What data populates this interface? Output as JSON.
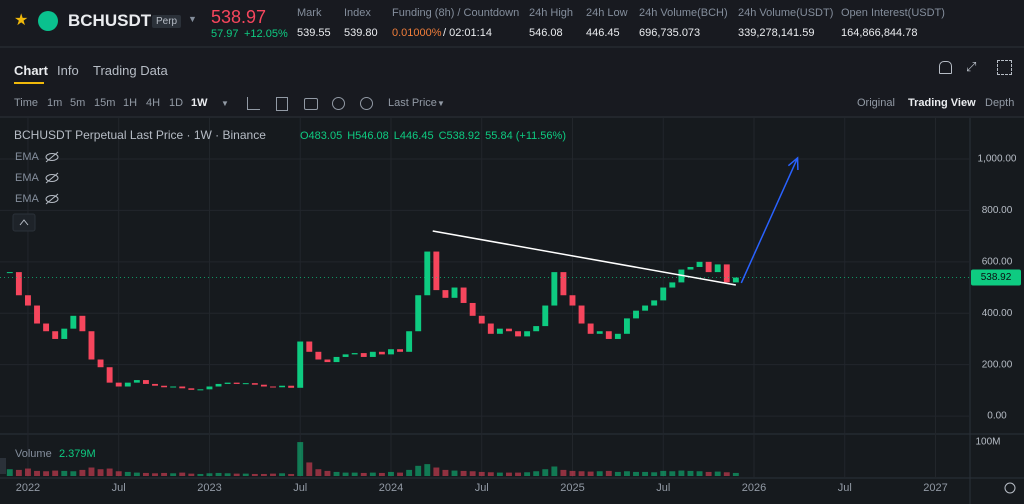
{
  "header": {
    "symbol": "BCHUSDT",
    "badge": "Perp",
    "last_price": "538.97",
    "change": "57.97",
    "change_pct": "+12.05%",
    "stats": [
      {
        "label": "Mark",
        "value": "539.55"
      },
      {
        "label": "Index",
        "value": "539.80"
      },
      {
        "label": "Funding (8h) / Countdown",
        "value": "0.01000%",
        "extra": "/ 02:01:14"
      },
      {
        "label": "24h High",
        "value": "546.08"
      },
      {
        "label": "24h Low",
        "value": "446.45"
      },
      {
        "label": "24h Volume(BCH)",
        "value": "696,735.073"
      },
      {
        "label": "24h Volume(USDT)",
        "value": "339,278,141.59"
      },
      {
        "label": "Open Interest(USDT)",
        "value": "164,866,844.78"
      }
    ]
  },
  "tabs": [
    "Chart",
    "Info",
    "Trading Data"
  ],
  "toolbar": {
    "intervals": [
      "Time",
      "1m",
      "5m",
      "15m",
      "1H",
      "4H",
      "1D",
      "1W"
    ],
    "price_type": "Last Price",
    "views": [
      "Original",
      "Trading View",
      "Depth"
    ]
  },
  "chart_data": {
    "type": "candlestick",
    "title": "BCHUSDT Perpetual Last Price · 1W · Binance",
    "ohlc_labels": [
      "O483.05",
      "H546.08",
      "L446.45",
      "C538.92",
      "55.84 (+11.56%)"
    ],
    "indicators": [
      "EMA",
      "EMA",
      "EMA"
    ],
    "up_color": "#0ecb81",
    "down_color": "#f6465d",
    "grid": true,
    "xlim": [
      2021.846,
      2027.19
    ],
    "xticks": [
      {
        "value": 2022,
        "label": "2022"
      },
      {
        "value": 2022.5,
        "label": "Jul"
      },
      {
        "value": 2023,
        "label": "2023"
      },
      {
        "value": 2023.5,
        "label": "Jul"
      },
      {
        "value": 2024,
        "label": "2024"
      },
      {
        "value": 2024.5,
        "label": "Jul"
      },
      {
        "value": 2025,
        "label": "2025"
      },
      {
        "value": 2025.5,
        "label": "Jul"
      },
      {
        "value": 2026,
        "label": "2026"
      },
      {
        "value": 2026.5,
        "label": "Jul"
      },
      {
        "value": 2027,
        "label": "2027"
      }
    ],
    "ylim": [
      -62,
      1144
    ],
    "yticks": [
      {
        "value": 0,
        "label": "0.00"
      },
      {
        "value": 200,
        "label": "200.00"
      },
      {
        "value": 400,
        "label": "400.00"
      },
      {
        "value": 600,
        "label": "600.00"
      },
      {
        "value": 800,
        "label": "800.00"
      },
      {
        "value": 1000,
        "label": "1,000.00"
      }
    ],
    "x": [
      2021.9,
      2021.95,
      2022,
      2022.05,
      2022.1,
      2022.15,
      2022.2,
      2022.25,
      2022.3,
      2022.35,
      2022.4,
      2022.45,
      2022.5,
      2022.55,
      2022.6,
      2022.65,
      2022.7,
      2022.75,
      2022.8,
      2022.85,
      2022.9,
      2022.95,
      2023,
      2023.05,
      2023.1,
      2023.15,
      2023.2,
      2023.25,
      2023.3,
      2023.35,
      2023.4,
      2023.45,
      2023.5,
      2023.55,
      2023.6,
      2023.65,
      2023.7,
      2023.75,
      2023.8,
      2023.85,
      2023.9,
      2023.95,
      2024,
      2024.05,
      2024.1,
      2024.15,
      2024.2,
      2024.25,
      2024.3,
      2024.35,
      2024.4,
      2024.45,
      2024.5,
      2024.55,
      2024.6,
      2024.65,
      2024.7,
      2024.75,
      2024.8,
      2024.85,
      2024.9,
      2024.95,
      2025,
      2025.05,
      2025.1,
      2025.15,
      2025.2,
      2025.25,
      2025.3,
      2025.35,
      2025.4,
      2025.45,
      2025.5,
      2025.55,
      2025.6,
      2025.65,
      2025.7,
      2025.75,
      2025.8,
      2025.85,
      2025.9
    ],
    "close": [
      560,
      470,
      430,
      360,
      330,
      300,
      340,
      390,
      330,
      220,
      190,
      130,
      115,
      130,
      140,
      125,
      118,
      112,
      115,
      108,
      102,
      104,
      115,
      125,
      130,
      125,
      128,
      122,
      115,
      112,
      118,
      110,
      290,
      250,
      220,
      210,
      230,
      240,
      245,
      230,
      250,
      240,
      260,
      250,
      330,
      470,
      640,
      490,
      460,
      500,
      440,
      390,
      360,
      320,
      340,
      330,
      310,
      330,
      350,
      430,
      560,
      470,
      430,
      360,
      320,
      330,
      300,
      320,
      380,
      410,
      430,
      450,
      500,
      520,
      570,
      580,
      600,
      560,
      590,
      520,
      538.92
    ],
    "volume": {
      "name": "Volume",
      "current": "2.379M",
      "ylim": [
        0,
        115
      ],
      "yticks": [
        {
          "value": 100,
          "label": "100M"
        }
      ],
      "values": [
        20,
        18,
        22,
        15,
        14,
        16,
        15,
        14,
        18,
        25,
        20,
        22,
        14,
        12,
        10,
        9,
        8,
        9,
        8,
        10,
        7,
        6,
        8,
        9,
        8,
        7,
        7,
        6,
        6,
        7,
        8,
        6,
        100,
        40,
        20,
        15,
        12,
        10,
        10,
        9,
        10,
        9,
        12,
        10,
        18,
        30,
        35,
        25,
        18,
        16,
        15,
        14,
        12,
        11,
        10,
        10,
        10,
        11,
        14,
        20,
        28,
        18,
        15,
        14,
        13,
        14,
        15,
        12,
        14,
        12,
        12,
        11,
        15,
        14,
        16,
        15,
        14,
        12,
        13,
        11,
        9
      ]
    },
    "drawings": [
      {
        "type": "trendline",
        "color": "#ffffff",
        "x": [
          2024.23,
          2025.9
        ],
        "y": [
          720,
          510
        ]
      },
      {
        "type": "arrow",
        "color": "#2962ff",
        "x": [
          2025.93,
          2026.24
        ],
        "y": [
          518,
          1004
        ]
      }
    ]
  }
}
